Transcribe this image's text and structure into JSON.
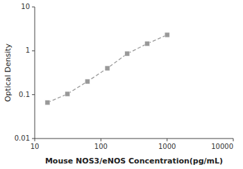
{
  "chart_data": {
    "type": "line",
    "x": [
      15.6,
      31.25,
      62.5,
      125,
      250,
      500,
      1000
    ],
    "series": [
      {
        "values": [
          0.066,
          0.104,
          0.2,
          0.4,
          0.86,
          1.45,
          2.3
        ],
        "color": "#999999",
        "marker": "square",
        "line_style": "dashed"
      }
    ],
    "xlabel": "Mouse NOS3/eNOS Concentration(pg/mL)",
    "ylabel": "Optical Density",
    "xlim": [
      10,
      10000
    ],
    "ylim": [
      0.01,
      10
    ],
    "xticks": [
      10,
      100,
      1000,
      10000
    ],
    "yticks": [
      0.01,
      0.1,
      1,
      10
    ],
    "log": true
  }
}
